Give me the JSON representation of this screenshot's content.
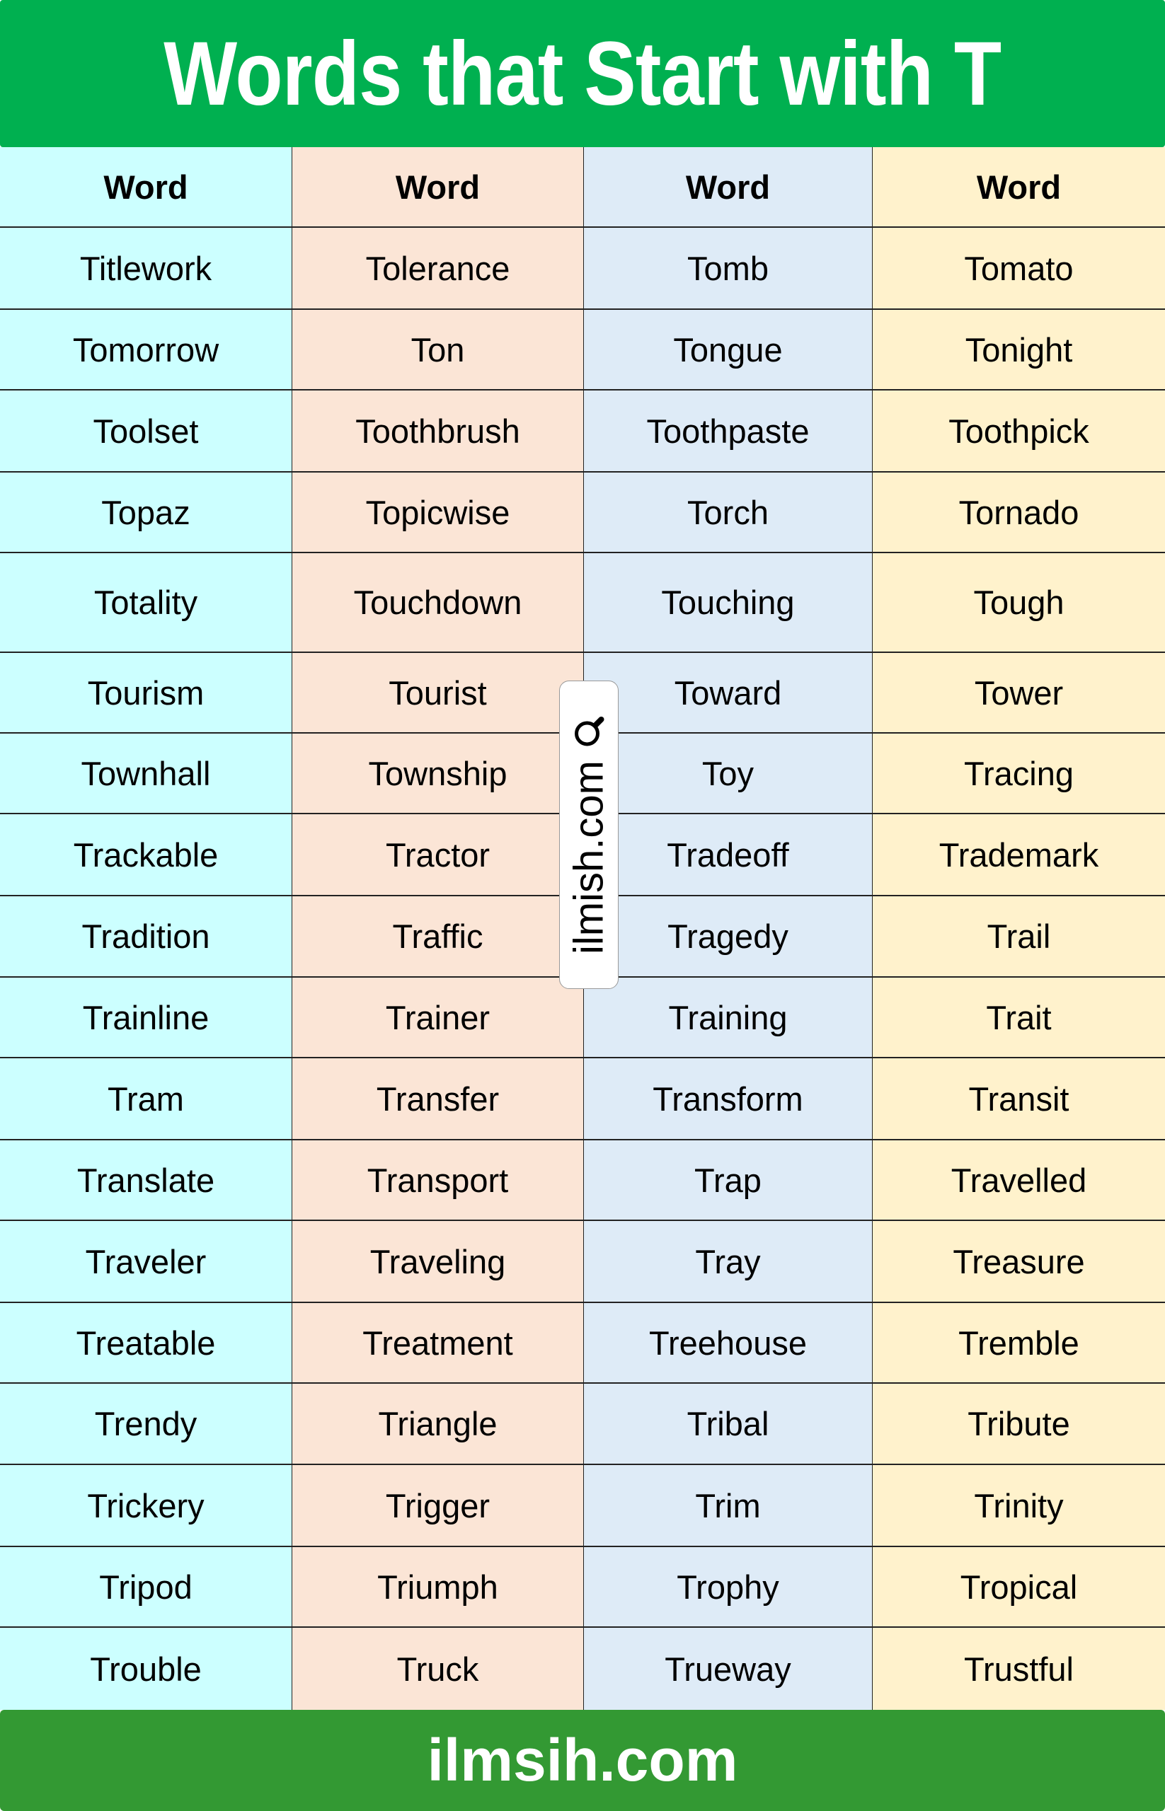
{
  "title": "Words that Start with T",
  "column_headers": [
    "Word",
    "Word",
    "Word",
    "Word"
  ],
  "rows": [
    [
      "Titlework",
      "Tolerance",
      "Tomb",
      "Tomato"
    ],
    [
      "Tomorrow",
      "Ton",
      "Tongue",
      "Tonight"
    ],
    [
      "Toolset",
      "Toothbrush",
      "Toothpaste",
      "Toothpick"
    ],
    [
      "Topaz",
      "Topicwise",
      "Torch",
      "Tornado"
    ],
    [
      "Totality",
      "Touchdown",
      "Touching",
      "Tough"
    ],
    [
      "Tourism",
      "Tourist",
      "Toward",
      "Tower"
    ],
    [
      "Townhall",
      "Township",
      "Toy",
      "Tracing"
    ],
    [
      "Trackable",
      "Tractor",
      "Tradeoff",
      "Trademark"
    ],
    [
      "Tradition",
      "Traffic",
      "Tragedy",
      "Trail"
    ],
    [
      "Trainline",
      "Trainer",
      "Training",
      "Trait"
    ],
    [
      "Tram",
      "Transfer",
      "Transform",
      "Transit"
    ],
    [
      "Translate",
      "Transport",
      "Trap",
      "Travelled"
    ],
    [
      "Traveler",
      "Traveling",
      "Tray",
      "Treasure"
    ],
    [
      "Treatable",
      "Treatment",
      "Treehouse",
      "Tremble"
    ],
    [
      "Trendy",
      "Triangle",
      "Tribal",
      "Tribute"
    ],
    [
      "Trickery",
      "Trigger",
      "Trim",
      "Trinity"
    ],
    [
      "Tripod",
      "Triumph",
      "Trophy",
      "Tropical"
    ],
    [
      "Trouble",
      "Truck",
      "Trueway",
      "Trustful"
    ]
  ],
  "watermark": {
    "text": "ilmish.com",
    "icon": "magnifier-icon"
  },
  "footer": "ilmsih.com",
  "colors": {
    "title_bg": "#00b050",
    "footer_bg": "#339933",
    "col1": "#ccffff",
    "col2": "#fbe5d6",
    "col3": "#deebf7",
    "col4": "#fff2cc"
  }
}
